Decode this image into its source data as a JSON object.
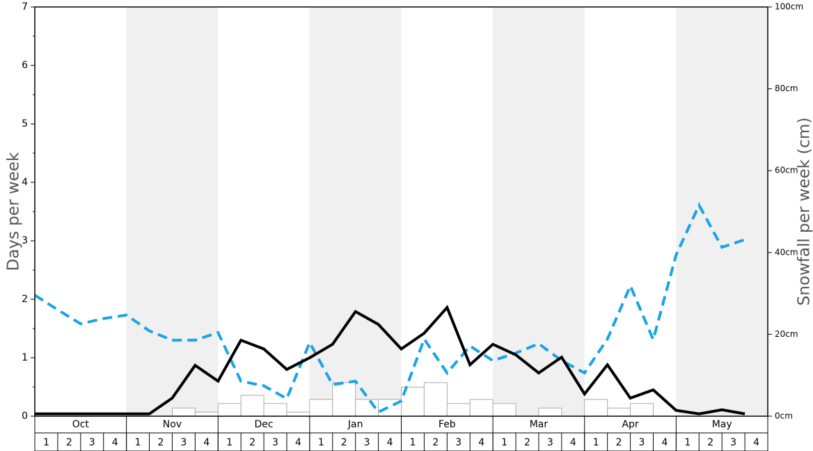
{
  "chart_data": {
    "type": "combo",
    "ylabel": "Days per week",
    "y2label": "Snowfall per week (cm)",
    "months": [
      "Oct",
      "Nov",
      "Dec",
      "Jan",
      "Feb",
      "Mar",
      "Apr",
      "May"
    ],
    "categories": [
      "1",
      "2",
      "3",
      "4",
      "1",
      "2",
      "3",
      "4",
      "1",
      "2",
      "3",
      "4",
      "1",
      "2",
      "3",
      "4",
      "1",
      "2",
      "3",
      "4",
      "1",
      "2",
      "3",
      "4",
      "1",
      "2",
      "3",
      "4",
      "1",
      "2",
      "3",
      "4"
    ],
    "ylim": [
      0,
      7
    ],
    "yticks": [
      0,
      1,
      2,
      3,
      4,
      5,
      6,
      7
    ],
    "y2lim": [
      0,
      100
    ],
    "y2ticks": [
      {
        "value": 0,
        "label": "0cm"
      },
      {
        "value": 20,
        "label": "20cm"
      },
      {
        "value": 40,
        "label": "40cm"
      },
      {
        "value": 60,
        "label": "60cm"
      },
      {
        "value": 80,
        "label": "80cm"
      },
      {
        "value": 100,
        "label": "100cm"
      }
    ],
    "series": [
      {
        "type": "bar",
        "axis": "y2",
        "color": "#ffffff",
        "values": [
          0,
          0,
          0,
          0,
          0,
          0,
          2.0,
          1.0,
          3.1,
          5.1,
          3.1,
          1.0,
          4.1,
          8.2,
          4.1,
          4.1,
          7.1,
          8.2,
          3.1,
          4.1,
          3.1,
          0,
          2.0,
          0,
          4.1,
          2.0,
          3.1,
          0,
          0,
          0,
          0,
          0
        ]
      },
      {
        "type": "line",
        "color": "#1aa3e8",
        "dashed": true,
        "values": [
          2.07,
          1.82,
          1.58,
          1.67,
          1.73,
          1.46,
          1.3,
          1.3,
          1.43,
          0.6,
          0.52,
          0.3,
          1.26,
          0.54,
          0.6,
          0.07,
          0.26,
          1.32,
          0.74,
          1.2,
          0.95,
          1.08,
          1.24,
          0.95,
          0.74,
          1.32,
          2.23,
          1.31,
          2.76,
          3.61,
          2.89,
          3.02
        ]
      },
      {
        "type": "line",
        "color": "#000000",
        "dashed": false,
        "values": [
          0.04,
          0.04,
          0.04,
          0.04,
          0.04,
          0.04,
          0.31,
          0.87,
          0.6,
          1.3,
          1.15,
          0.8,
          1.0,
          1.23,
          1.79,
          1.57,
          1.15,
          1.42,
          1.86,
          0.88,
          1.23,
          1.05,
          0.74,
          1.01,
          0.38,
          0.88,
          0.31,
          0.45,
          0.1,
          0.04,
          0.11,
          0.04
        ]
      }
    ]
  }
}
